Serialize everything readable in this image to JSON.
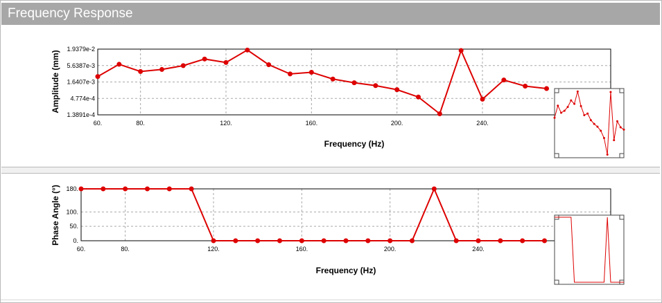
{
  "window": {
    "title": "Frequency Response"
  },
  "colors": {
    "series": "#dd0000",
    "grid": "#a8a8a8",
    "titlebar": "#a7a7a7"
  },
  "chart_data": [
    {
      "type": "line",
      "name": "amplitude",
      "xlabel": "Frequency (Hz)",
      "ylabel": "Amplitude (mm)",
      "xlim": [
        60,
        300
      ],
      "x_ticks": [
        "60.",
        "80.",
        "120.",
        "160.",
        "200.",
        "240."
      ],
      "x_tick_values": [
        60,
        80,
        120,
        160,
        200,
        240
      ],
      "y_scale": "log",
      "ylim": [
        0.00013891,
        0.019379
      ],
      "y_ticks": [
        "1.9379e-2",
        "5.6387e-3",
        "1.6407e-3",
        "4.774e-4",
        "1.3891e-4"
      ],
      "y_tick_values": [
        0.019379,
        0.0056387,
        0.0016407,
        0.0004774,
        0.00013891
      ],
      "series": [
        {
          "x": [
            60,
            70,
            80,
            90,
            100,
            110,
            120,
            130,
            140,
            150,
            160,
            170,
            180,
            190,
            200,
            210,
            220,
            230,
            240,
            250,
            260,
            270
          ],
          "y": [
            0.00247,
            0.0062,
            0.0036,
            0.0042,
            0.0056,
            0.0092,
            0.0071,
            0.0181,
            0.006,
            0.003,
            0.0034,
            0.00205,
            0.00155,
            0.00125,
            0.00092,
            0.00053,
            0.00015,
            0.0175,
            0.00045,
            0.0019,
            0.0012,
            0.001
          ]
        }
      ]
    },
    {
      "type": "line",
      "name": "phase",
      "xlabel": "Frequency (Hz)",
      "ylabel": "Phase Angle (°)",
      "xlim": [
        60,
        300
      ],
      "x_ticks": [
        "60.",
        "80.",
        "120.",
        "160.",
        "200.",
        "240."
      ],
      "x_tick_values": [
        60,
        80,
        120,
        160,
        200,
        240
      ],
      "ylim": [
        0,
        180
      ],
      "y_ticks": [
        "180.",
        "100.",
        "50.",
        "0."
      ],
      "y_tick_values": [
        180,
        100,
        50,
        0
      ],
      "series": [
        {
          "x": [
            60,
            70,
            80,
            90,
            100,
            110,
            120,
            130,
            140,
            150,
            160,
            170,
            180,
            190,
            200,
            210,
            220,
            230,
            240,
            250,
            260,
            270
          ],
          "y": [
            180,
            180,
            180,
            180,
            180,
            180,
            0,
            0,
            0,
            0,
            0,
            0,
            0,
            0,
            0,
            0,
            180,
            0,
            0,
            0,
            0,
            0
          ]
        }
      ]
    }
  ]
}
